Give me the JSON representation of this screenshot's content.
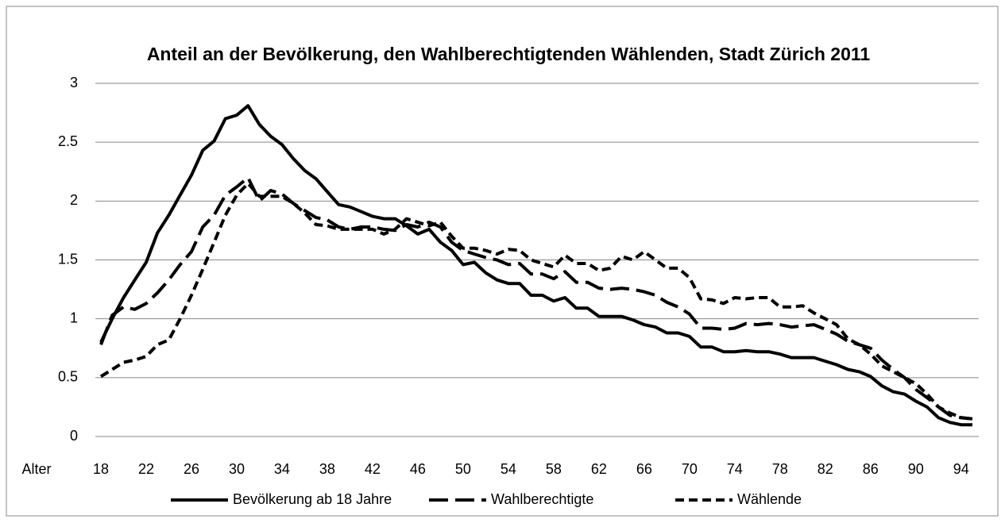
{
  "chart_data": {
    "type": "line",
    "title": "Anteil an der Bevölkerung, den Wahlberechtigtenden Wählenden, Stadt Zürich 2011",
    "x_label": "Alter",
    "categories": [
      18,
      null,
      null,
      null,
      22,
      null,
      null,
      null,
      26,
      null,
      null,
      null,
      30,
      null,
      null,
      null,
      34,
      null,
      null,
      null,
      38,
      null,
      null,
      null,
      42,
      null,
      null,
      null,
      46,
      null,
      null,
      null,
      50,
      null,
      null,
      null,
      54,
      null,
      null,
      null,
      58,
      null,
      null,
      null,
      62,
      null,
      null,
      null,
      66,
      null,
      null,
      null,
      70,
      null,
      null,
      null,
      74,
      null,
      null,
      null,
      78,
      null,
      null,
      null,
      82,
      null,
      null,
      null,
      86,
      null,
      null,
      null,
      90,
      null,
      null,
      null,
      94,
      null
    ],
    "series": [
      {
        "name": "Bevölkerung ab 18 Jahre",
        "color": "#000000",
        "dash": "solid",
        "values": [
          0.8,
          1.0,
          1.18,
          1.33,
          1.48,
          1.73,
          1.88,
          2.05,
          2.22,
          2.43,
          2.51,
          2.7,
          2.73,
          2.81,
          2.65,
          2.55,
          2.48,
          2.36,
          2.26,
          2.19,
          2.08,
          1.97,
          1.95,
          1.91,
          1.87,
          1.85,
          1.85,
          1.79,
          1.72,
          1.76,
          1.65,
          1.58,
          1.46,
          1.48,
          1.39,
          1.33,
          1.3,
          1.3,
          1.2,
          1.2,
          1.15,
          1.18,
          1.09,
          1.09,
          1.02,
          1.02,
          1.02,
          0.99,
          0.95,
          0.93,
          0.88,
          0.88,
          0.85,
          0.76,
          0.76,
          0.72,
          0.72,
          0.73,
          0.72,
          0.72,
          0.7,
          0.67,
          0.67,
          0.67,
          0.64,
          0.61,
          0.57,
          0.55,
          0.51,
          0.43,
          0.38,
          0.36,
          0.3,
          0.25,
          0.16,
          0.12,
          0.1,
          0.1
        ]
      },
      {
        "name": "Wahlberechtigte",
        "color": "#000000",
        "dash": "long-dash",
        "values": [
          0.78,
          1.03,
          1.1,
          1.08,
          1.13,
          1.22,
          1.33,
          1.46,
          1.57,
          1.78,
          1.88,
          2.05,
          2.12,
          2.2,
          2.0,
          2.09,
          2.06,
          1.98,
          1.92,
          1.86,
          1.84,
          1.78,
          1.76,
          1.78,
          1.78,
          1.76,
          1.75,
          1.8,
          1.78,
          1.82,
          1.78,
          1.65,
          1.58,
          1.55,
          1.52,
          1.5,
          1.46,
          1.47,
          1.38,
          1.38,
          1.34,
          1.4,
          1.31,
          1.31,
          1.26,
          1.25,
          1.26,
          1.25,
          1.23,
          1.2,
          1.14,
          1.1,
          1.04,
          0.92,
          0.92,
          0.91,
          0.92,
          0.96,
          0.95,
          0.96,
          0.95,
          0.93,
          0.94,
          0.95,
          0.91,
          0.87,
          0.81,
          0.78,
          0.75,
          0.65,
          0.57,
          0.5,
          0.4,
          0.33,
          0.25,
          0.18,
          0.16,
          0.15
        ]
      },
      {
        "name": "Wählende",
        "color": "#000000",
        "dash": "dash",
        "values": [
          0.51,
          0.57,
          0.63,
          0.65,
          0.68,
          0.78,
          0.82,
          1.0,
          1.2,
          1.42,
          1.65,
          1.88,
          2.05,
          2.15,
          2.04,
          2.04,
          2.04,
          1.98,
          1.9,
          1.8,
          1.79,
          1.76,
          1.76,
          1.76,
          1.76,
          1.72,
          1.76,
          1.85,
          1.82,
          1.79,
          1.82,
          1.7,
          1.6,
          1.6,
          1.58,
          1.55,
          1.59,
          1.58,
          1.5,
          1.47,
          1.44,
          1.54,
          1.47,
          1.47,
          1.41,
          1.43,
          1.53,
          1.5,
          1.57,
          1.5,
          1.43,
          1.43,
          1.35,
          1.17,
          1.16,
          1.13,
          1.18,
          1.17,
          1.18,
          1.18,
          1.1,
          1.1,
          1.11,
          1.05,
          1.0,
          0.95,
          0.83,
          0.78,
          0.7,
          0.6,
          0.55,
          0.5,
          0.45,
          0.36,
          0.25,
          0.2,
          0.16,
          0.15
        ]
      }
    ],
    "ylim": [
      0,
      3
    ],
    "yticks": [
      0,
      0.5,
      1,
      1.5,
      2,
      2.5,
      3
    ],
    "grid": true,
    "legend": "bottom"
  }
}
